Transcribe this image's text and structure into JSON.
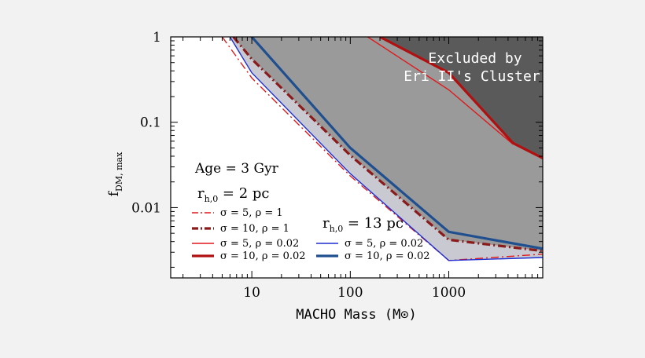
{
  "chart_data": {
    "type": "line",
    "xlabel": "MACHO Mass",
    "xlabel_unit": "(M⊙)",
    "ylabel": "f",
    "ylabel_sub": "DM, max",
    "x_scale": "log",
    "y_scale": "log",
    "xlim": [
      1.5,
      9000
    ],
    "ylim": [
      0.0015,
      1
    ],
    "x_ticks": [
      {
        "value": 10,
        "label": "10"
      },
      {
        "value": 100,
        "label": "100"
      },
      {
        "value": 1000,
        "label": "1000"
      }
    ],
    "y_ticks": [
      {
        "value": 1,
        "label": "1"
      },
      {
        "value": 0.1,
        "label": "0.1"
      },
      {
        "value": 0.01,
        "label": "0.01"
      }
    ],
    "colors": {
      "excluded_region": "#5a5a5a",
      "shaded_band": "#9a9a9a",
      "light_band": "#c9c9d2",
      "red_thin": "#e0191b",
      "red_thick": "#b01010",
      "darkred": "#8b1a1a",
      "blue_thin": "#1f2fd0",
      "blue_thick": "#1f4f8f"
    },
    "excluded_label_line1": "Excluded by",
    "excluded_label_line2": "Eri II's Cluster",
    "age_label": "Age = 3 Gyr",
    "group_a_label": "r",
    "group_a_sub": "h,0",
    "group_a_value": " = 2 pc",
    "group_b_label": "r",
    "group_b_sub": "h,0",
    "group_b_value": " = 13 pc",
    "series": [
      {
        "name": "σ = 5,  ρ = 1",
        "group": "rh0 = 2 pc",
        "style": "dash-dot",
        "width": "thin",
        "color": "#e0191b",
        "x": [
          5,
          10,
          100,
          1000,
          9000
        ],
        "y": [
          1.0,
          0.33,
          0.0235,
          0.0024,
          0.00285
        ]
      },
      {
        "name": "σ = 10,  ρ = 1",
        "group": "rh0 = 2 pc",
        "style": "dash-dot",
        "width": "thick",
        "color": "#8b1a1a",
        "x": [
          6.5,
          10,
          100,
          1000,
          9000
        ],
        "y": [
          1.0,
          0.55,
          0.041,
          0.0042,
          0.0031
        ]
      },
      {
        "name": "σ = 5,  ρ = 0.02",
        "group": "rh0 = 2 pc",
        "style": "solid",
        "width": "thin",
        "color": "#e0191b",
        "x": [
          150,
          1000,
          4500
        ],
        "y": [
          1.0,
          0.24,
          0.055
        ]
      },
      {
        "name": "σ = 10,  ρ = 0.02",
        "group": "rh0 = 2 pc",
        "style": "solid",
        "width": "thick",
        "color": "#b01010",
        "x": [
          200,
          1000,
          4500,
          9000
        ],
        "y": [
          1.0,
          0.38,
          0.057,
          0.038
        ]
      },
      {
        "name": "σ = 5,  ρ = 0.02",
        "group": "rh0 = 13 pc",
        "style": "solid",
        "width": "thin",
        "color": "#1f2fd0",
        "x": [
          6,
          10,
          100,
          1000,
          9000
        ],
        "y": [
          1.0,
          0.38,
          0.025,
          0.0024,
          0.0026
        ]
      },
      {
        "name": "σ = 10,  ρ = 0.02",
        "group": "rh0 = 13 pc",
        "style": "solid",
        "width": "thick",
        "color": "#1f4f8f",
        "x": [
          10,
          100,
          1000,
          9000
        ],
        "y": [
          1.0,
          0.05,
          0.0052,
          0.0033
        ]
      }
    ]
  }
}
